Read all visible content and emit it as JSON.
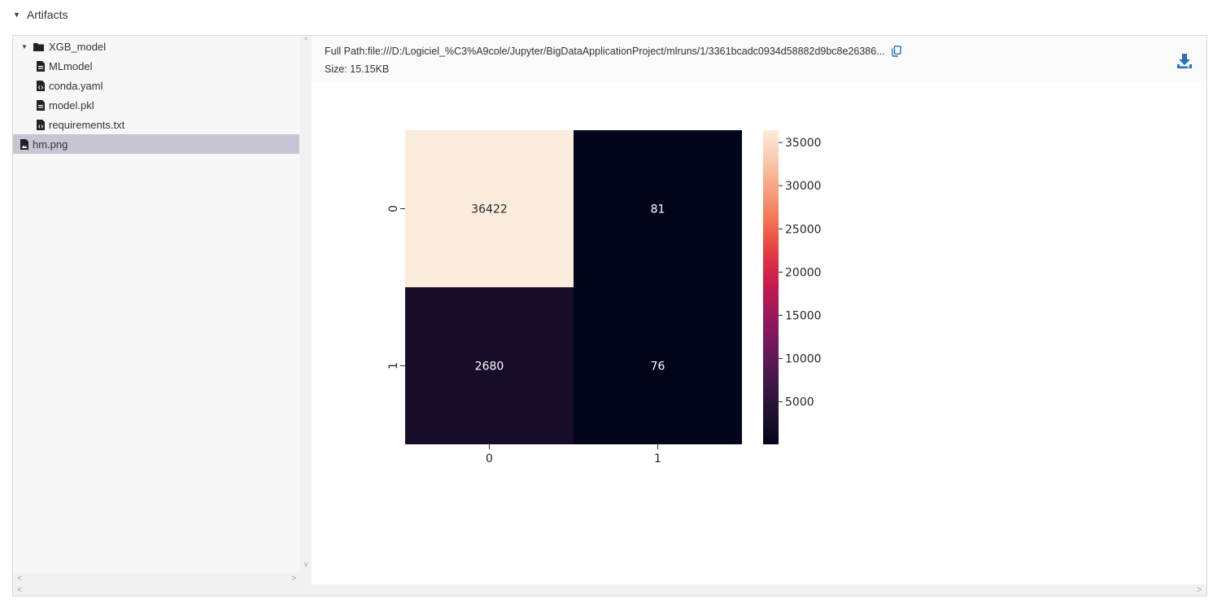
{
  "section": {
    "title": "Artifacts",
    "caret": "▼"
  },
  "tree": {
    "items": [
      {
        "label": "XGB_model",
        "icon": "folder-icon",
        "expanded": true,
        "depth": 0
      },
      {
        "label": "MLmodel",
        "icon": "file-text-icon",
        "depth": 1
      },
      {
        "label": "conda.yaml",
        "icon": "file-code-icon",
        "depth": 1
      },
      {
        "label": "model.pkl",
        "icon": "file-text-icon",
        "depth": 1
      },
      {
        "label": "requirements.txt",
        "icon": "file-code-icon",
        "depth": 1
      },
      {
        "label": "hm.png",
        "icon": "file-image-icon",
        "depth": 0,
        "selected": true
      }
    ]
  },
  "preview": {
    "path_label": "Full Path:",
    "path_value": "file:///D:/Logiciel_%C3%A9cole/Jupyter/BigDataApplicationProject/mlruns/1/3361bcadc0934d58882d9bc8e26386...",
    "size_label": "Size:",
    "size_value": "15.15KB",
    "copy_icon": "copy-icon",
    "download_icon": "download-icon",
    "accent": "#2374bb"
  },
  "chart_data": {
    "type": "heatmap",
    "rows": [
      "0",
      "1"
    ],
    "cols": [
      "0",
      "1"
    ],
    "values": [
      [
        36422,
        81
      ],
      [
        2680,
        76
      ]
    ],
    "colormap": "rocket",
    "colorbar": {
      "ticks": [
        35000,
        30000,
        25000,
        20000,
        15000,
        10000,
        5000
      ],
      "min": 76,
      "max": 36422
    }
  }
}
